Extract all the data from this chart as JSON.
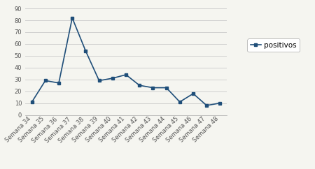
{
  "categories": [
    "Semana 34",
    "Semana 35",
    "Semana 36",
    "Semana 37",
    "Semana 38",
    "Semana 39",
    "Semana 40",
    "Semana 41",
    "Semana 42",
    "Semana 43",
    "Semana 44",
    "Semana 45",
    "Semana 46",
    "Semana 47",
    "Semana 48"
  ],
  "values": [
    11,
    29,
    27,
    82,
    54,
    29,
    31,
    34,
    25,
    23,
    23,
    11,
    18,
    8,
    10
  ],
  "line_color": "#1F4E79",
  "marker": "s",
  "marker_size": 3.5,
  "legend_label": "positivos",
  "ylim": [
    0,
    90
  ],
  "yticks": [
    0,
    10,
    20,
    30,
    40,
    50,
    60,
    70,
    80,
    90
  ],
  "background_color": "#f5f5f0",
  "plot_bg_color": "#f5f5f0",
  "grid_color": "#d0d0d0",
  "tick_label_fontsize": 6,
  "legend_fontsize": 7.5
}
